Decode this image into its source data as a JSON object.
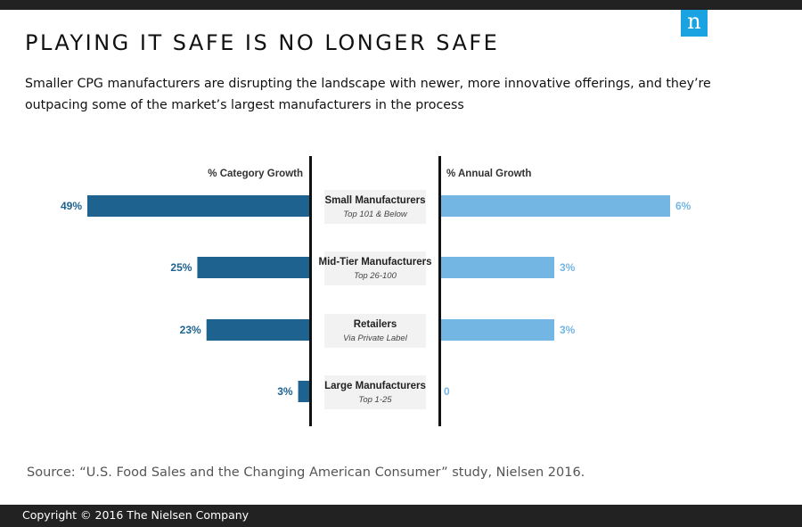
{
  "brand": {
    "logo_letter": "n",
    "logo_color": "#1aa3e0"
  },
  "header": {
    "title": "PLAYING IT SAFE IS NO LONGER SAFE",
    "subtitle": "Smaller CPG manufacturers are disrupting the landscape with newer, more innovative offerings, and they’re outpacing some of the market’s largest manufacturers in the process"
  },
  "chart_data": {
    "type": "bar",
    "orientation": "horizontal-diverging",
    "left_label": "% Category Growth",
    "right_label": "% Annual Growth",
    "categories": [
      {
        "name": "Small Manufacturers",
        "sub": "Top 101 & Below"
      },
      {
        "name": "Mid-Tier Manufacturers",
        "sub": "Top 26-100"
      },
      {
        "name": "Retailers",
        "sub": "Via Private Label"
      },
      {
        "name": "Large Manufacturers",
        "sub": "Top 1-25"
      }
    ],
    "series": [
      {
        "name": "% Category Growth",
        "side": "left",
        "color": "#1e6390",
        "values": [
          49,
          25,
          23,
          3
        ],
        "labels": [
          "49%",
          "25%",
          "23%",
          "3%"
        ]
      },
      {
        "name": "% Annual Growth",
        "side": "right",
        "color": "#74b6e3",
        "values": [
          6,
          3,
          3,
          0
        ],
        "labels": [
          "6%",
          "3%",
          "3%",
          "0"
        ]
      }
    ]
  },
  "source": "Source: “U.S. Food Sales and the Changing American Consumer” study, Nielsen 2016.",
  "footer": {
    "copyright": "Copyright © 2016 The Nielsen Company"
  }
}
